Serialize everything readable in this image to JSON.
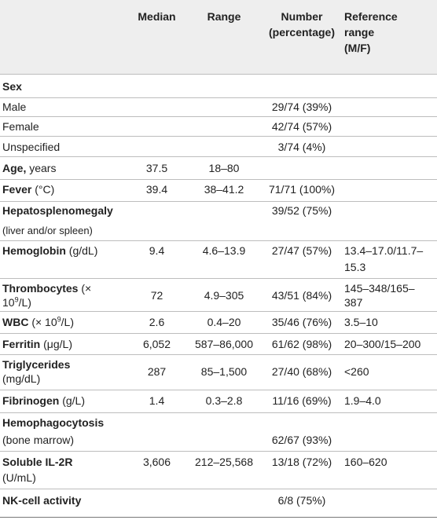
{
  "table": {
    "headers": {
      "median": "Median",
      "range": "Range",
      "number_l1": "Number",
      "number_l2": "(percentage)",
      "ref_l1": "Reference",
      "ref_l2": "range",
      "ref_l3": "(M/F)"
    },
    "rows": {
      "sex": {
        "label": "Sex"
      },
      "male": {
        "label": "Male",
        "number": "29/74 (39%)"
      },
      "female": {
        "label": "Female",
        "number": "42/74 (57%)"
      },
      "unspecified": {
        "label": "Unspecified",
        "number": "3/74 (4%)"
      },
      "age": {
        "label_bold": "Age,",
        "label_unit": " years",
        "median": "37.5",
        "range": "18–80"
      },
      "fever": {
        "label_bold": "Fever",
        "label_unit": " (°C)",
        "median": "39.4",
        "range": "38–41.2",
        "number": "71/71 (100%)"
      },
      "hsm": {
        "label_bold": "Hepatosplenomegaly",
        "label_l2": "(liver and/or spleen)",
        "number": "39/52 (75%)"
      },
      "hemoglobin": {
        "label_bold": "Hemoglobin",
        "label_unit": " (g/dL)",
        "median": "9.4",
        "range": "4.6–13.9",
        "number": "27/47 (57%)",
        "ref_l1": "13.4–17.0/11.7–",
        "ref_l2": "15.3"
      },
      "thrombocytes": {
        "label_bold": "Thrombocytes",
        "label_unit": " (×",
        "label_l2_pre": "10",
        "label_l2_sup": "9",
        "label_l2_post": "/L)",
        "median": "72",
        "range": "4.9–305",
        "number": "43/51 (84%)",
        "ref_l1": "145–348/165–",
        "ref_l2": "387"
      },
      "wbc": {
        "label_bold": "WBC",
        "label_unit": " (× 10",
        "label_sup": "9",
        "label_post": "/L)",
        "median": "2.6",
        "range": "0.4–20",
        "number": "35/46 (76%)",
        "ref": "3.5–10"
      },
      "ferritin": {
        "label_bold": "Ferritin",
        "label_unit": " (μg/L)",
        "median": "6,052",
        "range": "587–86,000",
        "number": "61/62 (98%)",
        "ref": "20–300/15–200"
      },
      "triglycerides": {
        "label_bold": "Triglycerides",
        "label_l2": "(mg/dL)",
        "median": "287",
        "range": "85–1,500",
        "number": "27/40 (68%)",
        "ref": "<260"
      },
      "fibrinogen": {
        "label_bold": "Fibrinogen",
        "label_unit": " (g/L)",
        "median": "1.4",
        "range": "0.3–2.8",
        "number": "11/16 (69%)",
        "ref": "1.9–4.0"
      },
      "hemophago": {
        "label_bold": "Hemophagocytosis",
        "label_l2": "(bone marrow)",
        "number": "62/67 (93%)"
      },
      "il2r": {
        "label_bold": "Soluble IL-2R",
        "label_l2": "(U/mL)",
        "median": "3,606",
        "range": "212–25,568",
        "number": "13/18 (72%)",
        "ref": "160–620"
      },
      "nk": {
        "label_bold": "NK-cell activity",
        "number": "6/8 (75%)"
      }
    }
  }
}
